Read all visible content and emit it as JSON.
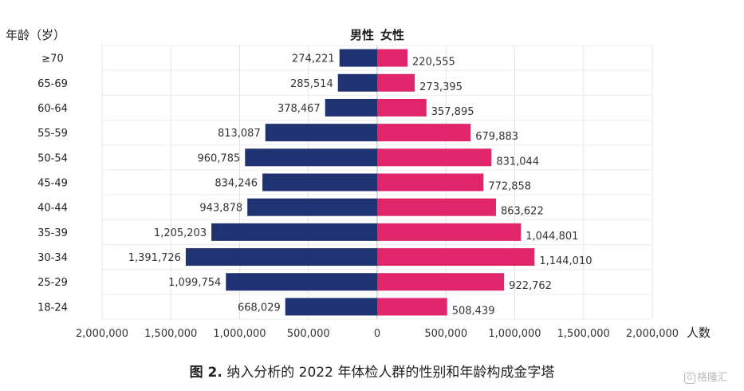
{
  "chart_data": {
    "type": "bar",
    "orientation": "horizontal-diverging",
    "y_axis_title": "年龄（岁）",
    "x_axis_unit": "人数",
    "categories": [
      "≥70",
      "65-69",
      "60-64",
      "55-59",
      "50-54",
      "45-49",
      "40-44",
      "35-39",
      "30-34",
      "25-29",
      "18-24"
    ],
    "series": [
      {
        "name": "男性",
        "color": "#1f3272",
        "values": [
          274221,
          285514,
          378467,
          813087,
          960785,
          834246,
          943878,
          1205203,
          1391726,
          1099754,
          668029
        ],
        "labels": [
          "274,221",
          "285,514",
          "378,467",
          "813,087",
          "960,785",
          "834,246",
          "943,878",
          "1,205,203",
          "1,391,726",
          "1,099,754",
          "668,029"
        ]
      },
      {
        "name": "女性",
        "color": "#e0256b",
        "values": [
          220555,
          273395,
          357895,
          679883,
          831044,
          772858,
          863622,
          1044801,
          1144010,
          922762,
          508439
        ],
        "labels": [
          "220,555",
          "273,395",
          "357,895",
          "679,883",
          "831,044",
          "772,858",
          "863,622",
          "1,044,801",
          "1,144,010",
          "922,762",
          "508,439"
        ]
      }
    ],
    "xlim": [
      -2000000,
      2000000
    ],
    "x_ticks": [
      -2000000,
      -1500000,
      -1000000,
      -500000,
      0,
      500000,
      1000000,
      1500000,
      2000000
    ],
    "x_tick_labels": [
      "2,000,000",
      "1,500,000",
      "1,000,000",
      "500,000",
      "0",
      "500,000",
      "1,000,000",
      "1,500,000",
      "2,000,000"
    ],
    "grid": true
  },
  "caption": {
    "figure_label": "图 2.",
    "text": " 纳入分析的 2022 年体检人群的性别和年龄构成金字塔"
  },
  "watermark": {
    "glyph": "G",
    "text": "格隆汇"
  }
}
